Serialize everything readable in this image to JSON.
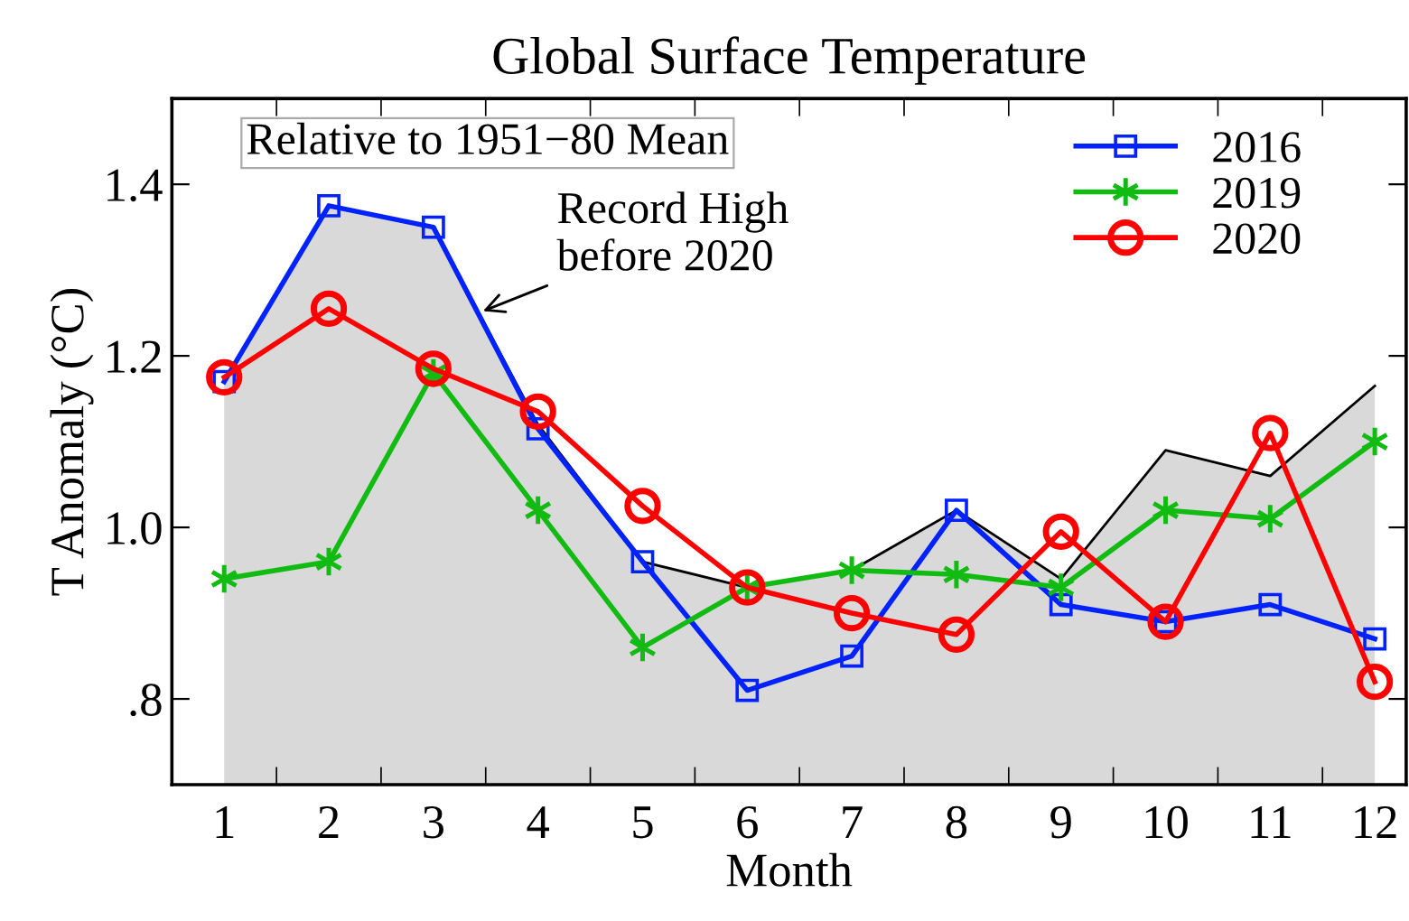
{
  "chart_data": {
    "type": "line",
    "title": "Global Surface Temperature",
    "xlabel": "Month",
    "ylabel": "T Anomaly (°C)",
    "x": [
      1,
      2,
      3,
      4,
      5,
      6,
      7,
      8,
      9,
      10,
      11,
      12
    ],
    "series": [
      {
        "type": "area",
        "color": "#d9d9d9",
        "values": [
          1.17,
          1.375,
          1.35,
          1.12,
          0.96,
          0.93,
          0.95,
          1.02,
          0.94,
          1.09,
          1.06,
          1.165
        ]
      },
      {
        "name": "2016",
        "color": "#0022ff",
        "marker": "square",
        "values": [
          1.17,
          1.375,
          1.35,
          1.115,
          0.96,
          0.81,
          0.85,
          1.02,
          0.91,
          0.89,
          0.91,
          0.87
        ]
      },
      {
        "name": "2019",
        "color": "#11bb11",
        "marker": "cross",
        "values": [
          0.94,
          0.96,
          1.18,
          1.02,
          0.86,
          0.93,
          0.95,
          0.945,
          0.93,
          1.02,
          1.01,
          1.1
        ]
      },
      {
        "name": "2020",
        "color": "#ff0000",
        "marker": "circle",
        "values": [
          1.175,
          1.255,
          1.185,
          1.135,
          1.025,
          0.93,
          0.9,
          0.875,
          0.995,
          0.89,
          1.11,
          0.82
        ]
      }
    ],
    "xlim": [
      0.5,
      12.3
    ],
    "xticks": [
      {
        "value": 1,
        "label": "1"
      },
      {
        "value": 1.5,
        "label": null
      },
      {
        "value": 2,
        "label": "2"
      },
      {
        "value": 2.5,
        "label": null
      },
      {
        "value": 3,
        "label": "3"
      },
      {
        "value": 3.5,
        "label": null
      },
      {
        "value": 4,
        "label": "4"
      },
      {
        "value": 4.5,
        "label": null
      },
      {
        "value": 5,
        "label": "5"
      },
      {
        "value": 5.5,
        "label": null
      },
      {
        "value": 6,
        "label": "6"
      },
      {
        "value": 6.5,
        "label": null
      },
      {
        "value": 7,
        "label": "7"
      },
      {
        "value": 7.5,
        "label": null
      },
      {
        "value": 8,
        "label": "8"
      },
      {
        "value": 8.5,
        "label": null
      },
      {
        "value": 9,
        "label": "9"
      },
      {
        "value": 9.5,
        "label": null
      },
      {
        "value": 10,
        "label": "10"
      },
      {
        "value": 10.5,
        "label": null
      },
      {
        "value": 11,
        "label": "11"
      },
      {
        "value": 11.5,
        "label": null
      },
      {
        "value": 12,
        "label": "12"
      }
    ],
    "ylim": [
      0.7,
      1.5
    ],
    "yticks": [
      {
        "value": 0.8,
        "label": ".8"
      },
      {
        "value": 1.0,
        "label": "1.0"
      },
      {
        "value": 1.2,
        "label": "1.2"
      },
      {
        "value": 1.4,
        "label": "1.4"
      }
    ],
    "annotations": [
      "Relative to 1951−80 Mean",
      {
        "text": "Record High\nbefore 2020",
        "x": 3.43,
        "y": 1.25
      }
    ],
    "legend": "top right",
    "grid": false,
    "line_style": "solid"
  }
}
